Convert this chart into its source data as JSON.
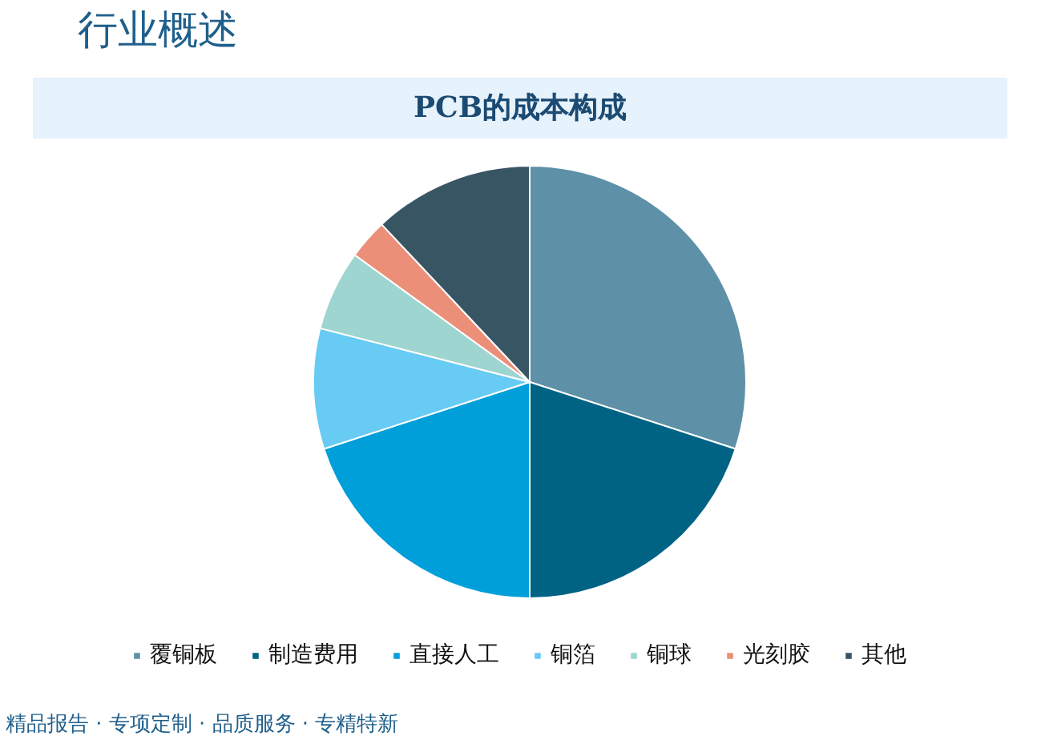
{
  "chart_data": {
    "type": "pie",
    "title": "PCB的成本构成",
    "categories": [
      "覆铜板",
      "制造费用",
      "直接人工",
      "铜箔",
      "铜球",
      "光刻胶",
      "其他"
    ],
    "values": [
      30,
      20,
      20,
      9,
      6,
      3,
      12
    ],
    "colors": [
      "#5e90a8",
      "#006384",
      "#009fd9",
      "#67cbf3",
      "#9fd5d1",
      "#eb8f79",
      "#385564"
    ],
    "legend": "bottom",
    "annotations": [
      "行业概述",
      "精品报告 · 专项定制 · 品质服务 · 专精特新"
    ]
  }
}
